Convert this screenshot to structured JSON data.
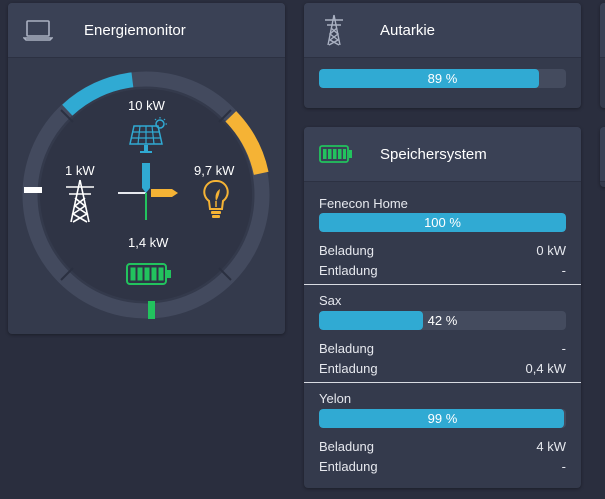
{
  "energy_monitor": {
    "title": "Energiemonitor",
    "header_icon": "laptop-icon",
    "production": {
      "value": "10 kW",
      "icon": "solar-panel-icon"
    },
    "grid": {
      "value": "1 kW",
      "icon": "power-tower-icon"
    },
    "consumption": {
      "value": "9,7 kW",
      "icon": "lightbulb-icon"
    },
    "storage": {
      "value": "1,4 kW",
      "icon": "battery-icon"
    },
    "colors": {
      "production": "#30aad3",
      "consumption": "#f5b335",
      "storage": "#22c35e",
      "grid": "#ffffff"
    }
  },
  "autarky": {
    "title": "Autarkie",
    "icon": "power-tower-icon",
    "percent": 89,
    "percent_label": "89 %"
  },
  "storage_system": {
    "title": "Speichersystem",
    "icon": "battery-icon",
    "systems": [
      {
        "name": "Fenecon Home",
        "percent": 100,
        "percent_label": "100 %",
        "charge_label": "Beladung",
        "charge_value": "0 kW",
        "discharge_label": "Entladung",
        "discharge_value": "-"
      },
      {
        "name": "Sax",
        "percent": 42,
        "percent_label": "42 %",
        "charge_label": "Beladung",
        "charge_value": "-",
        "discharge_label": "Entladung",
        "discharge_value": "0,4 kW"
      },
      {
        "name": "Yelon",
        "percent": 99,
        "percent_label": "99 %",
        "charge_label": "Beladung",
        "charge_value": "4 kW",
        "discharge_label": "Entladung",
        "discharge_value": "-"
      }
    ]
  }
}
